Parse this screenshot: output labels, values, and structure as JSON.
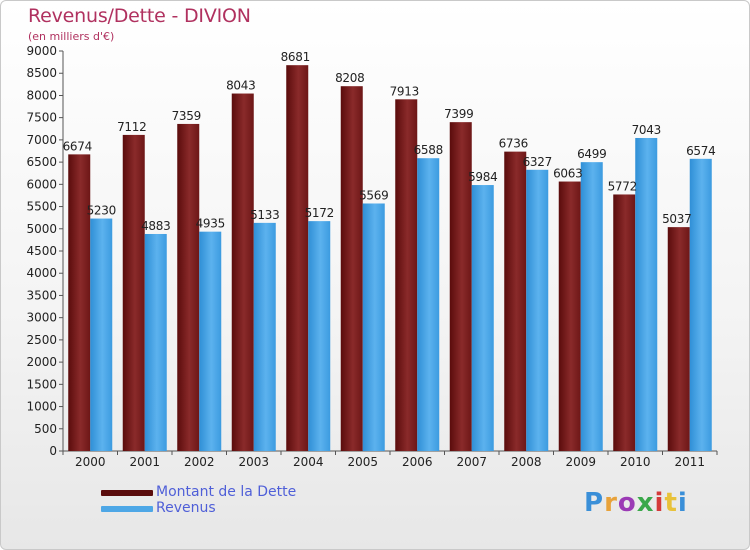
{
  "title": "Revenus/Dette - DIVION",
  "subtitle": "(en milliers d'€)",
  "colors": {
    "dette": "#7a1d1d",
    "revenus": "#4ea7e6",
    "title": "#b0315f",
    "legend_text": "#4f5fd8"
  },
  "legend": {
    "dette_label": "Montant de la Dette",
    "revenus_label": "Revenus"
  },
  "logo": {
    "text": "Proxiti"
  },
  "chart_data": {
    "type": "bar",
    "title": "Revenus/Dette - DIVION",
    "subtitle": "(en milliers d'€)",
    "categories": [
      "2000",
      "2001",
      "2002",
      "2003",
      "2004",
      "2005",
      "2006",
      "2007",
      "2008",
      "2009",
      "2010",
      "2011"
    ],
    "series": [
      {
        "name": "Montant de la Dette",
        "values": [
          6674,
          7112,
          7359,
          8043,
          8681,
          8208,
          7913,
          7399,
          6736,
          6063,
          5772,
          5037
        ]
      },
      {
        "name": "Revenus",
        "values": [
          5230,
          4883,
          4935,
          5133,
          5172,
          5569,
          6588,
          5984,
          6327,
          6499,
          7043,
          6574
        ]
      }
    ],
    "ylim": [
      0,
      9000
    ],
    "ytick_step": 500,
    "grid": false,
    "legend_position": "bottom-left"
  }
}
